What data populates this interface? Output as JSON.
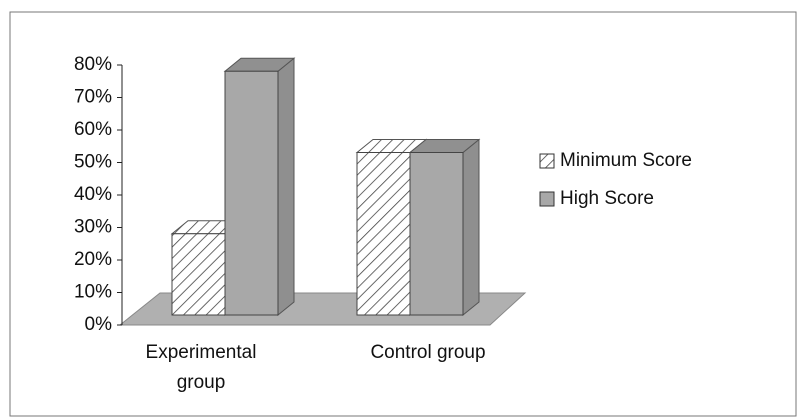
{
  "chart_data": {
    "type": "bar3d",
    "categories": [
      "Experimental group",
      "Control group"
    ],
    "series": [
      {
        "name": "Minimum Score",
        "color": "#444444",
        "values": [
          25,
          50
        ]
      },
      {
        "name": "High Score",
        "color": "#a8a8a8",
        "values": [
          75,
          50
        ]
      }
    ],
    "ylim": [
      0,
      80
    ],
    "yticks": [
      {
        "value": 0,
        "label": "0%"
      },
      {
        "value": 10,
        "label": "10%"
      },
      {
        "value": 20,
        "label": "20%"
      },
      {
        "value": 30,
        "label": "30%"
      },
      {
        "value": 40,
        "label": "40%"
      },
      {
        "value": 50,
        "label": "50%"
      },
      {
        "value": 60,
        "label": "60%"
      },
      {
        "value": 70,
        "label": "70%"
      },
      {
        "value": 80,
        "label": "80%"
      }
    ],
    "legend": "right"
  }
}
